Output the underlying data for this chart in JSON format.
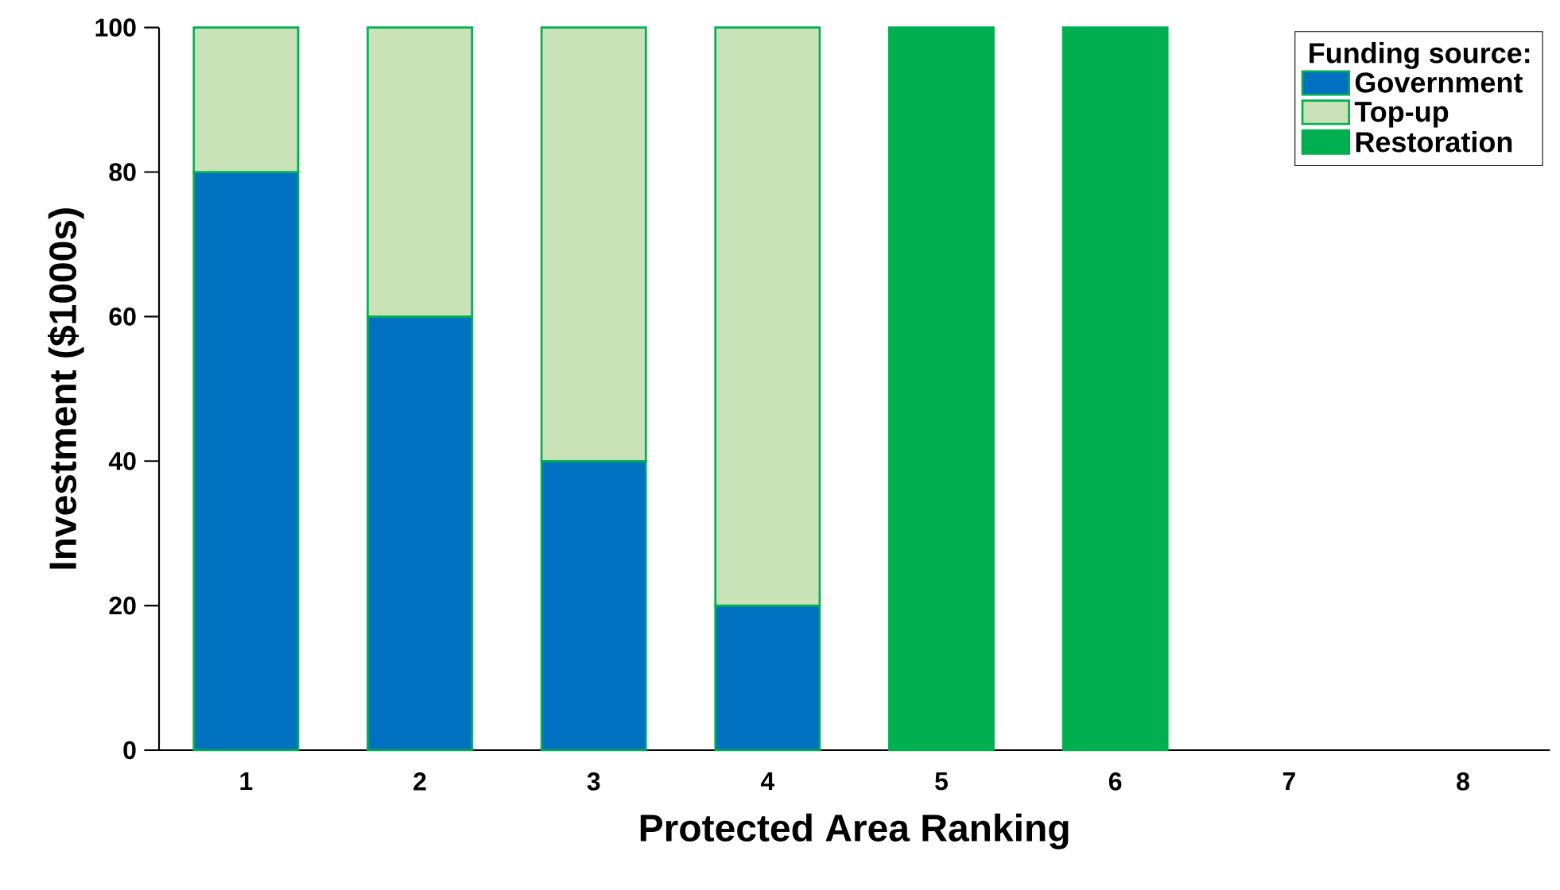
{
  "chart_data": {
    "type": "bar",
    "stacked": true,
    "xlabel": "Protected Area Ranking",
    "ylabel": "Investment ($1000s)",
    "legend_title": "Funding source:",
    "legend": "top right",
    "categories": [
      "1",
      "2",
      "3",
      "4",
      "5",
      "6",
      "7",
      "8"
    ],
    "series": [
      {
        "name": "Government",
        "color": "#0070c0",
        "values": [
          80,
          60,
          40,
          20,
          null,
          null,
          null,
          null
        ]
      },
      {
        "name": "Top-up",
        "color": "#c9e2b8",
        "values": [
          20,
          40,
          60,
          80,
          null,
          null,
          null,
          null
        ]
      },
      {
        "name": "Restoration",
        "color": "#00b050",
        "values": [
          null,
          null,
          null,
          null,
          100,
          100,
          null,
          null
        ]
      }
    ],
    "ylim": [
      0,
      100
    ],
    "yticks": [
      0,
      20,
      40,
      60,
      80,
      100
    ]
  }
}
